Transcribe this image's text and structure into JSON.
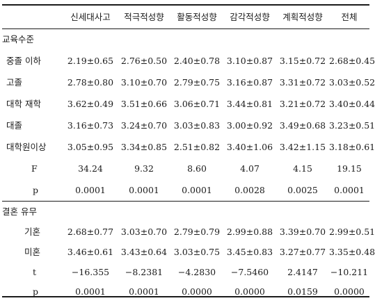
{
  "columns": [
    "신세대사고",
    "적극적성향",
    "활동적성향",
    "감각적성향",
    "계획적성향",
    "전체"
  ],
  "sections": [
    {
      "title": "교육수준",
      "rows": [
        {
          "label": "중졸 이하",
          "values": [
            "2.19±0.65",
            "2.76±0.50",
            "2.40±0.78",
            "3.10±0.87",
            "3.15±0.72",
            "2.68±0.45"
          ]
        },
        {
          "label": "고졸",
          "values": [
            "2.78±0.80",
            "3.10±0.70",
            "2.79±0.75",
            "3.16±0.87",
            "3.31±0.72",
            "3.03±0.52"
          ]
        },
        {
          "label": "대학 재학",
          "values": [
            "3.62±0.49",
            "3.51±0.66",
            "3.06±0.71",
            "3.44±0.81",
            "3.21±0.72",
            "3.40±0.44"
          ]
        },
        {
          "label": "대졸",
          "values": [
            "3.16±0.73",
            "3.24±0.70",
            "3.03±0.83",
            "3.00±0.92",
            "3.49±0.68",
            "3.23±0.51"
          ]
        },
        {
          "label": "대학원이상",
          "values": [
            "3.05±0.95",
            "3.34±0.85",
            "2.51±0.82",
            "3.40±1.06",
            "3.42±1.15",
            "3.18±0.61"
          ]
        },
        {
          "label": "F",
          "values": [
            "34.24",
            "9.32",
            "8.60",
            "4.07",
            "4.15",
            "19.15"
          ]
        },
        {
          "label": "p",
          "values": [
            "0.0001",
            "0.0001",
            "0.0001",
            "0.0028",
            "0.0025",
            "0.0001"
          ]
        }
      ]
    },
    {
      "title": "결혼 유무",
      "rows": [
        {
          "label": "기혼",
          "values": [
            "2.68±0.77",
            "3.03±0.70",
            "2.79±0.79",
            "2.99±0.88",
            "3.39±0.70",
            "2.99±0.51"
          ]
        },
        {
          "label": "미혼",
          "values": [
            "3.46±0.61",
            "3.43±0.64",
            "3.03±0.75",
            "3.45±0.83",
            "3.27±0.77",
            "3.35±0.48"
          ]
        },
        {
          "label": "t",
          "values": [
            "−16.355",
            "−8.2381",
            "−4.2830",
            "−7.5460",
            "2.4147",
            "−10.211"
          ]
        },
        {
          "label": "p",
          "values": [
            "0.0001",
            "0.0001",
            "0.0000",
            "0.0000",
            "0.0159",
            "0.0000"
          ]
        }
      ]
    }
  ]
}
